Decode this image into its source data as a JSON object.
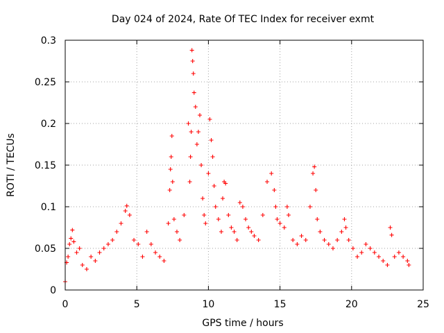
{
  "chart_data": {
    "type": "scatter",
    "title": "Day 024 of 2024, Rate Of TEC Index for receiver exmt",
    "xlabel": "GPS time / hours",
    "ylabel": "ROTI / TECUs",
    "xlim": [
      0,
      25
    ],
    "ylim": [
      0,
      0.3
    ],
    "x_ticks": [
      0,
      5,
      10,
      15,
      20,
      25
    ],
    "x_tick_labels": [
      "0",
      "5",
      "10",
      "15",
      "20",
      "25"
    ],
    "y_ticks": [
      0,
      0.05,
      0.1,
      0.15,
      0.2,
      0.25,
      0.3
    ],
    "y_tick_labels": [
      "0",
      "0.05",
      "0.1",
      "0.15",
      "0.2",
      "0.25",
      "0.3"
    ],
    "grid": true,
    "marker": "+",
    "series": [
      {
        "name": "ROTI",
        "color": "#ff0000",
        "x": [
          0.0,
          0.1,
          0.2,
          0.3,
          0.4,
          0.5,
          0.6,
          0.8,
          1.0,
          1.2,
          1.5,
          1.8,
          2.1,
          2.4,
          2.7,
          3.0,
          3.3,
          3.6,
          3.9,
          4.2,
          4.3,
          4.5,
          4.8,
          5.1,
          5.4,
          5.7,
          6.0,
          6.3,
          6.6,
          6.9,
          7.2,
          7.3,
          7.35,
          7.4,
          7.45,
          7.5,
          7.6,
          7.8,
          8.0,
          8.3,
          8.6,
          8.7,
          8.75,
          8.8,
          8.85,
          8.9,
          8.95,
          9.0,
          9.1,
          9.2,
          9.3,
          9.4,
          9.5,
          9.6,
          9.7,
          9.8,
          10.0,
          10.1,
          10.2,
          10.3,
          10.4,
          10.5,
          10.7,
          10.9,
          11.0,
          11.1,
          11.2,
          11.4,
          11.6,
          11.8,
          12.0,
          12.2,
          12.4,
          12.6,
          12.8,
          13.0,
          13.2,
          13.5,
          13.8,
          14.1,
          14.4,
          14.6,
          14.7,
          14.8,
          15.0,
          15.3,
          15.5,
          15.6,
          15.9,
          16.2,
          16.5,
          16.8,
          17.1,
          17.3,
          17.4,
          17.5,
          17.6,
          17.8,
          18.1,
          18.4,
          18.7,
          19.0,
          19.3,
          19.5,
          19.6,
          19.8,
          20.1,
          20.4,
          20.7,
          21.0,
          21.3,
          21.6,
          21.9,
          22.2,
          22.5,
          22.7,
          22.8,
          23.0,
          23.3,
          23.6,
          23.9,
          24.0
        ],
        "y": [
          0.01,
          0.033,
          0.04,
          0.055,
          0.062,
          0.072,
          0.058,
          0.045,
          0.05,
          0.03,
          0.025,
          0.04,
          0.035,
          0.045,
          0.05,
          0.055,
          0.06,
          0.07,
          0.08,
          0.095,
          0.101,
          0.09,
          0.06,
          0.055,
          0.04,
          0.07,
          0.055,
          0.045,
          0.04,
          0.035,
          0.08,
          0.12,
          0.145,
          0.16,
          0.185,
          0.13,
          0.085,
          0.07,
          0.06,
          0.09,
          0.2,
          0.13,
          0.16,
          0.19,
          0.288,
          0.275,
          0.26,
          0.237,
          0.22,
          0.175,
          0.19,
          0.21,
          0.15,
          0.11,
          0.09,
          0.08,
          0.14,
          0.205,
          0.18,
          0.16,
          0.125,
          0.1,
          0.085,
          0.07,
          0.11,
          0.13,
          0.128,
          0.09,
          0.075,
          0.07,
          0.06,
          0.105,
          0.1,
          0.085,
          0.075,
          0.07,
          0.065,
          0.06,
          0.09,
          0.13,
          0.14,
          0.12,
          0.1,
          0.085,
          0.08,
          0.075,
          0.1,
          0.09,
          0.06,
          0.055,
          0.065,
          0.06,
          0.1,
          0.14,
          0.148,
          0.12,
          0.085,
          0.07,
          0.06,
          0.055,
          0.05,
          0.06,
          0.07,
          0.085,
          0.075,
          0.06,
          0.05,
          0.04,
          0.045,
          0.055,
          0.05,
          0.045,
          0.04,
          0.035,
          0.03,
          0.075,
          0.066,
          0.04,
          0.045,
          0.04,
          0.035,
          0.03
        ]
      }
    ]
  }
}
